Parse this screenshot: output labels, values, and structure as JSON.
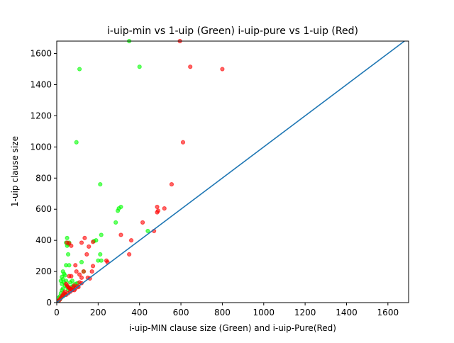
{
  "chart_data": {
    "type": "scatter",
    "title": "i-uip-min vs 1-uip (Green) i-uip-pure vs 1-uip (Red)",
    "xlabel": "i-uip-MIN clause size (Green) and i-uip-Pure(Red)",
    "ylabel": "1-uip clause size",
    "xlim": [
      0,
      1700
    ],
    "ylim": [
      0,
      1680
    ],
    "xticks": [
      "0",
      "200",
      "400",
      "600",
      "800",
      "1000",
      "1200",
      "1400",
      "1600"
    ],
    "yticks": [
      "0",
      "200",
      "400",
      "600",
      "800",
      "1000",
      "1200",
      "1400",
      "1600"
    ],
    "grid": false,
    "legend": "none",
    "series": [
      {
        "color": "#00ff00",
        "points": [
          [
            350,
            1680
          ],
          [
            110,
            1500
          ],
          [
            400,
            1515
          ],
          [
            95,
            1030
          ],
          [
            210,
            760
          ],
          [
            310,
            615
          ],
          [
            300,
            605
          ],
          [
            295,
            590
          ],
          [
            285,
            515
          ],
          [
            440,
            460
          ],
          [
            215,
            435
          ],
          [
            50,
            415
          ],
          [
            45,
            385
          ],
          [
            55,
            375
          ],
          [
            60,
            385
          ],
          [
            50,
            365
          ],
          [
            55,
            310
          ],
          [
            190,
            400
          ],
          [
            180,
            395
          ],
          [
            210,
            310
          ],
          [
            200,
            270
          ],
          [
            215,
            270
          ],
          [
            45,
            240
          ],
          [
            60,
            240
          ],
          [
            120,
            260
          ],
          [
            30,
            200
          ],
          [
            35,
            185
          ],
          [
            25,
            165
          ],
          [
            40,
            175
          ],
          [
            130,
            200
          ],
          [
            20,
            140
          ],
          [
            25,
            120
          ],
          [
            30,
            150
          ],
          [
            35,
            130
          ],
          [
            45,
            140
          ],
          [
            40,
            110
          ],
          [
            50,
            100
          ],
          [
            30,
            90
          ],
          [
            25,
            80
          ],
          [
            20,
            60
          ],
          [
            15,
            40
          ],
          [
            10,
            30
          ],
          [
            30,
            40
          ],
          [
            40,
            55
          ],
          [
            60,
            90
          ],
          [
            70,
            100
          ],
          [
            80,
            110
          ],
          [
            90,
            120
          ],
          [
            15,
            20
          ],
          [
            8,
            10
          ],
          [
            55,
            80
          ],
          [
            65,
            130
          ],
          [
            75,
            140
          ],
          [
            100,
            125
          ]
        ]
      },
      {
        "color": "#ff0000",
        "points": [
          [
            595,
            1680
          ],
          [
            645,
            1515
          ],
          [
            800,
            1500
          ],
          [
            610,
            1030
          ],
          [
            555,
            760
          ],
          [
            485,
            615
          ],
          [
            520,
            605
          ],
          [
            490,
            590
          ],
          [
            485,
            580
          ],
          [
            415,
            515
          ],
          [
            470,
            460
          ],
          [
            310,
            435
          ],
          [
            360,
            400
          ],
          [
            350,
            310
          ],
          [
            135,
            415
          ],
          [
            120,
            385
          ],
          [
            175,
            390
          ],
          [
            155,
            360
          ],
          [
            145,
            310
          ],
          [
            70,
            365
          ],
          [
            50,
            385
          ],
          [
            60,
            380
          ],
          [
            130,
            200
          ],
          [
            175,
            235
          ],
          [
            170,
            200
          ],
          [
            90,
            240
          ],
          [
            240,
            270
          ],
          [
            245,
            260
          ],
          [
            95,
            200
          ],
          [
            110,
            180
          ],
          [
            120,
            160
          ],
          [
            160,
            155
          ],
          [
            150,
            160
          ],
          [
            60,
            170
          ],
          [
            70,
            170
          ],
          [
            45,
            120
          ],
          [
            50,
            110
          ],
          [
            55,
            100
          ],
          [
            60,
            95
          ],
          [
            65,
            90
          ],
          [
            70,
            85
          ],
          [
            75,
            80
          ],
          [
            80,
            100
          ],
          [
            85,
            110
          ],
          [
            90,
            90
          ],
          [
            100,
            105
          ],
          [
            110,
            130
          ],
          [
            120,
            125
          ],
          [
            40,
            70
          ],
          [
            35,
            60
          ],
          [
            30,
            50
          ],
          [
            25,
            40
          ],
          [
            20,
            30
          ],
          [
            15,
            20
          ],
          [
            10,
            12
          ],
          [
            45,
            50
          ],
          [
            55,
            60
          ],
          [
            65,
            70
          ],
          [
            85,
            80
          ],
          [
            105,
            100
          ]
        ]
      },
      {
        "type": "line",
        "color": "#1f77b4",
        "points": [
          [
            0,
            0
          ],
          [
            1680,
            1680
          ]
        ]
      }
    ]
  }
}
